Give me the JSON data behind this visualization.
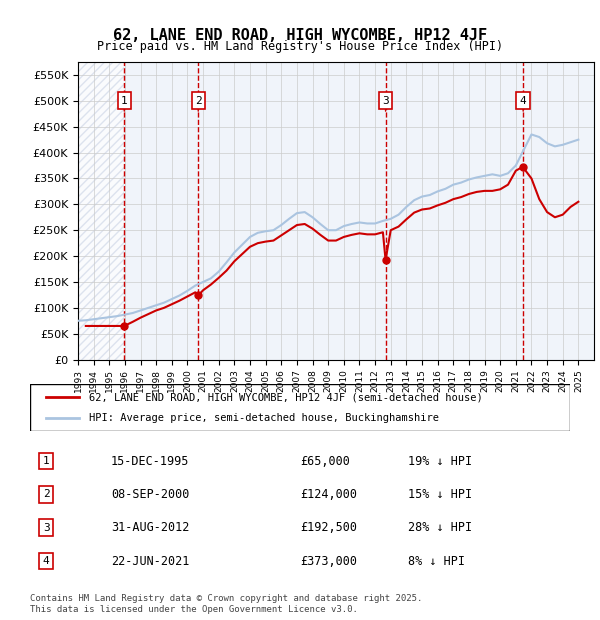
{
  "title": "62, LANE END ROAD, HIGH WYCOMBE, HP12 4JF",
  "subtitle": "Price paid vs. HM Land Registry's House Price Index (HPI)",
  "ylabel": "",
  "ylim": [
    0,
    575000
  ],
  "yticks": [
    0,
    50000,
    100000,
    150000,
    200000,
    250000,
    300000,
    350000,
    400000,
    450000,
    500000,
    550000
  ],
  "xlim_start": 1993.0,
  "xlim_end": 2026.0,
  "legend_red": "62, LANE END ROAD, HIGH WYCOMBE, HP12 4JF (semi-detached house)",
  "legend_blue": "HPI: Average price, semi-detached house, Buckinghamshire",
  "footer": "Contains HM Land Registry data © Crown copyright and database right 2025.\nThis data is licensed under the Open Government Licence v3.0.",
  "sale_dates": [
    1995.96,
    2000.69,
    2012.67,
    2021.47
  ],
  "sale_prices": [
    65000,
    124000,
    192500,
    373000
  ],
  "sale_labels": [
    "1",
    "2",
    "3",
    "4"
  ],
  "sale_table": [
    [
      "1",
      "15-DEC-1995",
      "£65,000",
      "19% ↓ HPI"
    ],
    [
      "2",
      "08-SEP-2000",
      "£124,000",
      "15% ↓ HPI"
    ],
    [
      "3",
      "31-AUG-2012",
      "£192,500",
      "28% ↓ HPI"
    ],
    [
      "4",
      "22-JUN-2021",
      "£373,000",
      "8% ↓ HPI"
    ]
  ],
  "hpi_x": [
    1993.0,
    1993.5,
    1994.0,
    1994.5,
    1995.0,
    1995.5,
    1996.0,
    1996.5,
    1997.0,
    1997.5,
    1998.0,
    1998.5,
    1999.0,
    1999.5,
    2000.0,
    2000.5,
    2001.0,
    2001.5,
    2002.0,
    2002.5,
    2003.0,
    2003.5,
    2004.0,
    2004.5,
    2005.0,
    2005.5,
    2006.0,
    2006.5,
    2007.0,
    2007.5,
    2008.0,
    2008.5,
    2009.0,
    2009.5,
    2010.0,
    2010.5,
    2011.0,
    2011.5,
    2012.0,
    2012.5,
    2013.0,
    2013.5,
    2014.0,
    2014.5,
    2015.0,
    2015.5,
    2016.0,
    2016.5,
    2017.0,
    2017.5,
    2018.0,
    2018.5,
    2019.0,
    2019.5,
    2020.0,
    2020.5,
    2021.0,
    2021.5,
    2022.0,
    2022.5,
    2023.0,
    2023.5,
    2024.0,
    2024.5,
    2025.0
  ],
  "hpi_y": [
    75000,
    76000,
    78000,
    80000,
    82000,
    84000,
    87000,
    90000,
    95000,
    100000,
    105000,
    110000,
    117000,
    124000,
    133000,
    143000,
    150000,
    157000,
    170000,
    188000,
    207000,
    222000,
    237000,
    245000,
    248000,
    250000,
    260000,
    272000,
    283000,
    285000,
    275000,
    262000,
    250000,
    250000,
    258000,
    262000,
    265000,
    263000,
    263000,
    268000,
    272000,
    280000,
    295000,
    308000,
    315000,
    318000,
    325000,
    330000,
    338000,
    342000,
    348000,
    352000,
    355000,
    358000,
    355000,
    360000,
    375000,
    405000,
    435000,
    430000,
    418000,
    412000,
    415000,
    420000,
    425000
  ],
  "price_x": [
    1993.5,
    1994.0,
    1994.5,
    1995.0,
    1995.5,
    1995.96,
    1996.5,
    1997.0,
    1997.5,
    1998.0,
    1998.5,
    1999.0,
    1999.5,
    2000.0,
    2000.5,
    2000.69,
    2001.0,
    2001.5,
    2002.0,
    2002.5,
    2003.0,
    2003.5,
    2004.0,
    2004.5,
    2005.0,
    2005.5,
    2006.0,
    2006.5,
    2007.0,
    2007.5,
    2008.0,
    2008.5,
    2009.0,
    2009.5,
    2010.0,
    2010.5,
    2011.0,
    2011.5,
    2012.0,
    2012.5,
    2012.67,
    2013.0,
    2013.5,
    2014.0,
    2014.5,
    2015.0,
    2015.5,
    2016.0,
    2016.5,
    2017.0,
    2017.5,
    2018.0,
    2018.5,
    2019.0,
    2019.5,
    2020.0,
    2020.5,
    2021.0,
    2021.47,
    2021.5,
    2022.0,
    2022.5,
    2023.0,
    2023.5,
    2024.0,
    2024.5,
    2025.0
  ],
  "price_y": [
    65000,
    65000,
    65000,
    65000,
    65000,
    65000,
    73000,
    81000,
    88000,
    95000,
    100000,
    107000,
    114000,
    122000,
    130000,
    124000,
    134000,
    145000,
    158000,
    172000,
    190000,
    204000,
    218000,
    225000,
    228000,
    230000,
    240000,
    250000,
    260000,
    262000,
    253000,
    241000,
    230000,
    230000,
    237000,
    241000,
    244000,
    242000,
    242000,
    246000,
    192500,
    250000,
    257000,
    271000,
    284000,
    290000,
    292000,
    298000,
    303000,
    310000,
    314000,
    320000,
    324000,
    326000,
    326000,
    329000,
    338000,
    365000,
    373000,
    370000,
    350000,
    310000,
    285000,
    275000,
    280000,
    295000,
    305000
  ],
  "background_hatch_color": "#d0d8e8",
  "hpi_color": "#aac4e0",
  "price_color": "#cc0000",
  "vline_color": "#cc0000",
  "box_color": "#cc0000",
  "grid_color": "#cccccc",
  "chart_bg": "#f0f4fa"
}
